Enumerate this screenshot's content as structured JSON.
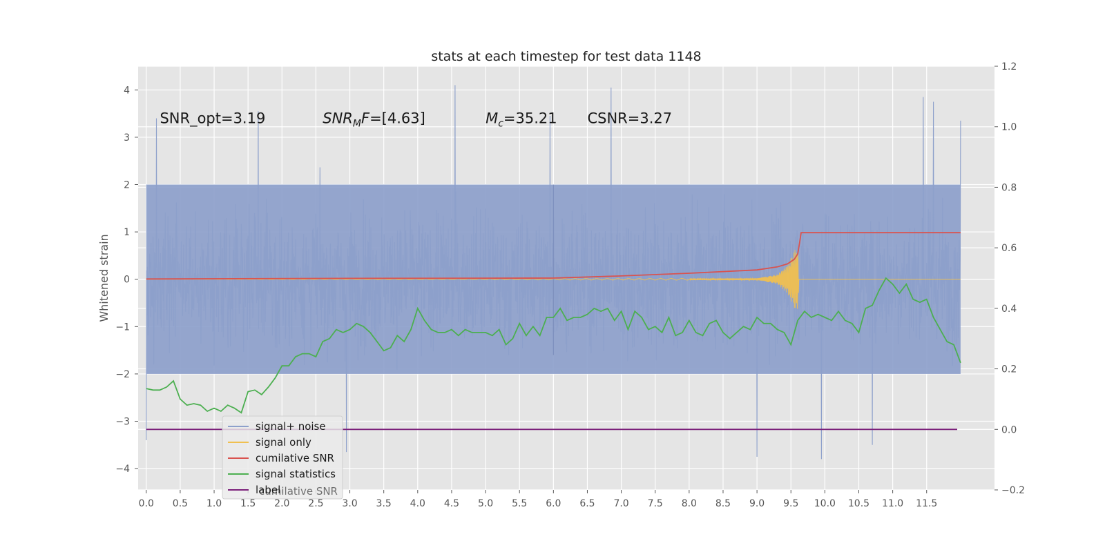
{
  "chart_data": {
    "type": "line",
    "title": "stats at each timestep for test data 1148",
    "ylabel_left": "Whitened strain",
    "xlim": [
      -0.12,
      12.5
    ],
    "ylim_left": [
      -4.45,
      4.5
    ],
    "ylim_right": [
      -0.2,
      1.2
    ],
    "x_ticks": [
      0.0,
      0.5,
      1.0,
      1.5,
      2.0,
      2.5,
      3.0,
      3.5,
      4.0,
      4.5,
      5.0,
      5.5,
      6.0,
      6.5,
      7.0,
      7.5,
      8.0,
      8.5,
      9.0,
      9.5,
      10.0,
      10.5,
      11.0,
      11.5
    ],
    "x_tick_labels": [
      "0.0",
      "0.5",
      "1.0",
      "1.5",
      "2.0",
      "2.5",
      "3.0",
      "3.5",
      "4.0",
      "4.5",
      "5.0",
      "5.5",
      "6.0",
      "6.5",
      "7.0",
      "7.5",
      "8.0",
      "8.5",
      "9.0",
      "9.5",
      "10.0",
      "10.5",
      "11.0",
      "11.5"
    ],
    "y_left_ticks": [
      4,
      3,
      2,
      1,
      0,
      -1,
      -2,
      -3,
      -4
    ],
    "y_left_tick_labels": [
      "4",
      "3",
      "2",
      "1",
      "0",
      "−1",
      "−2",
      "−3",
      "−4"
    ],
    "y_right_ticks": [
      1.2,
      1.0,
      0.8,
      0.6,
      0.4,
      0.2,
      0.0,
      -0.2
    ],
    "y_right_tick_labels": [
      "1.2",
      "1.0",
      "0.8",
      "0.6",
      "0.4",
      "0.2",
      "0.0",
      "−0.2"
    ],
    "grid": true,
    "annotations": [
      {
        "pre": "SNR_opt=3.19",
        "x": 0.2,
        "y": 3.3
      },
      {
        "pre": "",
        "italic": "SNR",
        "sub": "M",
        "italic2": "F",
        "post": "=[4.63]",
        "x": 2.6,
        "y": 3.3
      },
      {
        "pre": "",
        "italic": "M",
        "sub": "c",
        "post": "=35.21",
        "x": 5.0,
        "y": 3.3
      },
      {
        "pre": "CSNR=3.27",
        "x": 6.5,
        "y": 3.3
      }
    ],
    "legend": {
      "position": "lower-left",
      "entries": [
        {
          "label": "signal+ noise",
          "color": "#8da0cb"
        },
        {
          "label": "signal only",
          "color": "#f0c050"
        },
        {
          "label": "cumilative SNR",
          "color": "#d9534f"
        },
        {
          "label": "signal statistics",
          "color": "#4caf50"
        },
        {
          "label": "label",
          "color": "#7b1f7a"
        }
      ],
      "ghost_text": "cumilative SNR"
    },
    "series": [
      {
        "name": "signal+ noise",
        "axis": "left",
        "color": "#8da0cb",
        "x_range": [
          0.0,
          12.0
        ],
        "envelope_typical": [
          -2.0,
          2.0
        ],
        "spike_peaks": [
          {
            "x": 0.0,
            "y": 2.9
          },
          {
            "x": 0.0,
            "y": -3.4
          },
          {
            "x": 0.15,
            "y": 3.4
          },
          {
            "x": 1.65,
            "y": 3.55
          },
          {
            "x": 2.95,
            "y": -3.65
          },
          {
            "x": 4.55,
            "y": 4.1
          },
          {
            "x": 6.85,
            "y": 4.05
          },
          {
            "x": 9.0,
            "y": -3.75
          },
          {
            "x": 9.95,
            "y": -3.8
          },
          {
            "x": 11.45,
            "y": 3.85
          },
          {
            "x": 11.6,
            "y": 3.75
          },
          {
            "x": 12.0,
            "y": 3.35
          },
          {
            "x": 5.95,
            "y": 3.45
          },
          {
            "x": 10.7,
            "y": -3.5
          }
        ]
      },
      {
        "name": "signal only",
        "axis": "left",
        "color": "#f0c050",
        "x": [
          0.0,
          9.0,
          9.3,
          9.45,
          9.55,
          9.6,
          9.62,
          12.0
        ],
        "amplitude": [
          0.0,
          0.02,
          0.1,
          0.3,
          0.6,
          0.75,
          0.0,
          0.0
        ]
      },
      {
        "name": "cumilative SNR",
        "axis": "right",
        "color": "#d9534f",
        "x": [
          0.0,
          3.0,
          6.0,
          7.0,
          8.0,
          9.0,
          9.3,
          9.45,
          9.55,
          9.6,
          9.63,
          9.65,
          12.0
        ],
        "y": [
          0.497,
          0.499,
          0.5,
          0.507,
          0.516,
          0.527,
          0.537,
          0.547,
          0.562,
          0.58,
          0.62,
          0.65,
          0.65
        ]
      },
      {
        "name": "signal statistics",
        "axis": "right",
        "color": "#4caf50",
        "x": [
          0.0,
          0.1,
          0.2,
          0.3,
          0.4,
          0.5,
          0.6,
          0.7,
          0.8,
          0.9,
          1.0,
          1.1,
          1.2,
          1.3,
          1.4,
          1.5,
          1.6,
          1.7,
          1.8,
          1.9,
          2.0,
          2.1,
          2.2,
          2.3,
          2.4,
          2.5,
          2.6,
          2.7,
          2.8,
          2.9,
          3.0,
          3.1,
          3.2,
          3.3,
          3.4,
          3.5,
          3.6,
          3.7,
          3.8,
          3.9,
          4.0,
          4.1,
          4.2,
          4.3,
          4.4,
          4.5,
          4.6,
          4.7,
          4.8,
          4.9,
          5.0,
          5.1,
          5.2,
          5.3,
          5.4,
          5.5,
          5.6,
          5.7,
          5.8,
          5.9,
          6.0,
          6.1,
          6.2,
          6.3,
          6.4,
          6.5,
          6.6,
          6.7,
          6.8,
          6.9,
          7.0,
          7.1,
          7.2,
          7.3,
          7.4,
          7.5,
          7.6,
          7.7,
          7.8,
          7.9,
          8.0,
          8.1,
          8.2,
          8.3,
          8.4,
          8.5,
          8.6,
          8.7,
          8.8,
          8.9,
          9.0,
          9.1,
          9.2,
          9.3,
          9.4,
          9.5,
          9.6,
          9.7,
          9.8,
          9.9,
          10.0,
          10.1,
          10.2,
          10.3,
          10.4,
          10.5,
          10.6,
          10.7,
          10.8,
          10.9,
          11.0,
          11.1,
          11.2,
          11.3,
          11.4,
          11.5,
          11.6,
          11.7,
          11.8,
          11.9,
          12.0
        ],
        "y": [
          0.135,
          0.13,
          0.13,
          0.14,
          0.16,
          0.1,
          0.08,
          0.085,
          0.08,
          0.06,
          0.07,
          0.06,
          0.08,
          0.07,
          0.055,
          0.125,
          0.13,
          0.115,
          0.14,
          0.17,
          0.21,
          0.21,
          0.24,
          0.25,
          0.25,
          0.24,
          0.29,
          0.3,
          0.33,
          0.32,
          0.33,
          0.35,
          0.34,
          0.32,
          0.29,
          0.26,
          0.27,
          0.31,
          0.29,
          0.33,
          0.4,
          0.36,
          0.33,
          0.32,
          0.32,
          0.33,
          0.31,
          0.33,
          0.32,
          0.32,
          0.32,
          0.31,
          0.33,
          0.28,
          0.3,
          0.35,
          0.31,
          0.34,
          0.31,
          0.37,
          0.37,
          0.4,
          0.36,
          0.37,
          0.37,
          0.38,
          0.4,
          0.39,
          0.4,
          0.36,
          0.39,
          0.33,
          0.39,
          0.37,
          0.33,
          0.34,
          0.32,
          0.37,
          0.31,
          0.32,
          0.36,
          0.32,
          0.31,
          0.35,
          0.36,
          0.32,
          0.3,
          0.32,
          0.34,
          0.33,
          0.37,
          0.35,
          0.35,
          0.33,
          0.32,
          0.28,
          0.36,
          0.39,
          0.37,
          0.38,
          0.37,
          0.36,
          0.39,
          0.36,
          0.35,
          0.32,
          0.4,
          0.41,
          0.46,
          0.5,
          0.48,
          0.45,
          0.48,
          0.43,
          0.42,
          0.43,
          0.37,
          0.33,
          0.29,
          0.28,
          0.22
        ]
      },
      {
        "name": "label",
        "axis": "right",
        "color": "#7b1f7a",
        "x": [
          0.0,
          11.95
        ],
        "y": [
          0.0,
          0.0
        ]
      }
    ]
  }
}
